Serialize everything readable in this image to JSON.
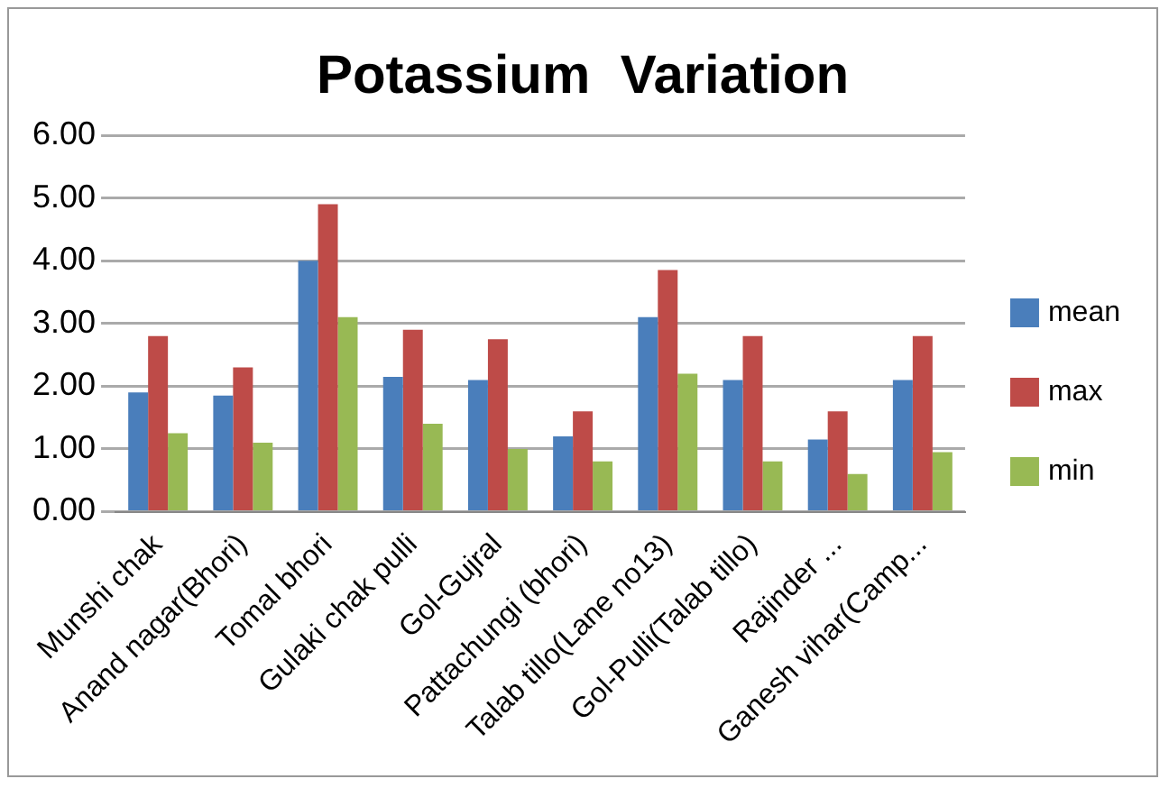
{
  "chart_data": {
    "type": "bar",
    "title": "Potassium  Variation",
    "categories": [
      "Munshi chak",
      "Anand nagar(Bhori)",
      "Tomal bhori",
      "Gulaki chak pulli",
      "Gol-Gujral",
      "Pattachungi (bhori)",
      "Talab tillo(Lane no13)",
      "Gol-Pulli(Talab tillo)",
      "Rajinder ...",
      "Ganesh vihar(Camp..."
    ],
    "series": [
      {
        "name": "mean",
        "color": "#4a7ebb",
        "values": [
          1.9,
          1.85,
          4.0,
          2.15,
          2.1,
          1.2,
          3.1,
          2.1,
          1.15,
          2.1
        ]
      },
      {
        "name": "max",
        "color": "#be4b48",
        "values": [
          2.8,
          2.3,
          4.9,
          2.9,
          2.75,
          1.6,
          3.85,
          2.8,
          1.6,
          2.8
        ]
      },
      {
        "name": "min",
        "color": "#98b954",
        "values": [
          1.25,
          1.1,
          3.1,
          1.4,
          1.0,
          0.8,
          2.2,
          0.8,
          0.6,
          0.95
        ]
      }
    ],
    "ylim": [
      0,
      6
    ],
    "yticks": [
      {
        "value": 0,
        "label": "0.00"
      },
      {
        "value": 1,
        "label": "1.00"
      },
      {
        "value": 2,
        "label": "2.00"
      },
      {
        "value": 3,
        "label": "3.00"
      },
      {
        "value": 4,
        "label": "4.00"
      },
      {
        "value": 5,
        "label": "5.00"
      },
      {
        "value": 6,
        "label": "6.00"
      }
    ],
    "grid": "y",
    "legend": "right"
  }
}
